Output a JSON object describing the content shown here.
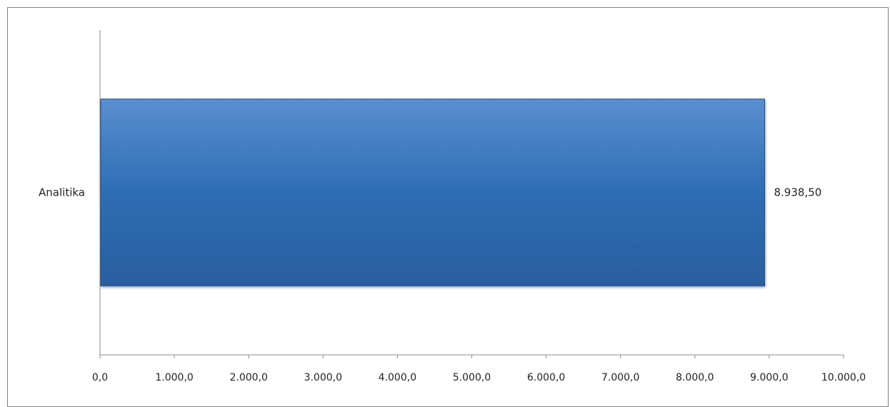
{
  "chart_data": {
    "type": "bar",
    "orientation": "horizontal",
    "categories": [
      "Analitika"
    ],
    "values": [
      8938.5
    ],
    "data_labels": [
      "8.938,50"
    ],
    "xlim": [
      0,
      10000
    ],
    "x_ticks": [
      0,
      1000,
      2000,
      3000,
      4000,
      5000,
      6000,
      7000,
      8000,
      9000,
      10000
    ],
    "x_tick_labels": [
      "0,0",
      "1.000,0",
      "2.000,0",
      "3.000,0",
      "4.000,0",
      "5.000,0",
      "6.000,0",
      "7.000,0",
      "8.000,0",
      "9.000,0",
      "10.000,0"
    ],
    "title": "",
    "xlabel": "",
    "ylabel": "",
    "grid": false,
    "legend": "none",
    "bar_color": "#2e6db4"
  }
}
